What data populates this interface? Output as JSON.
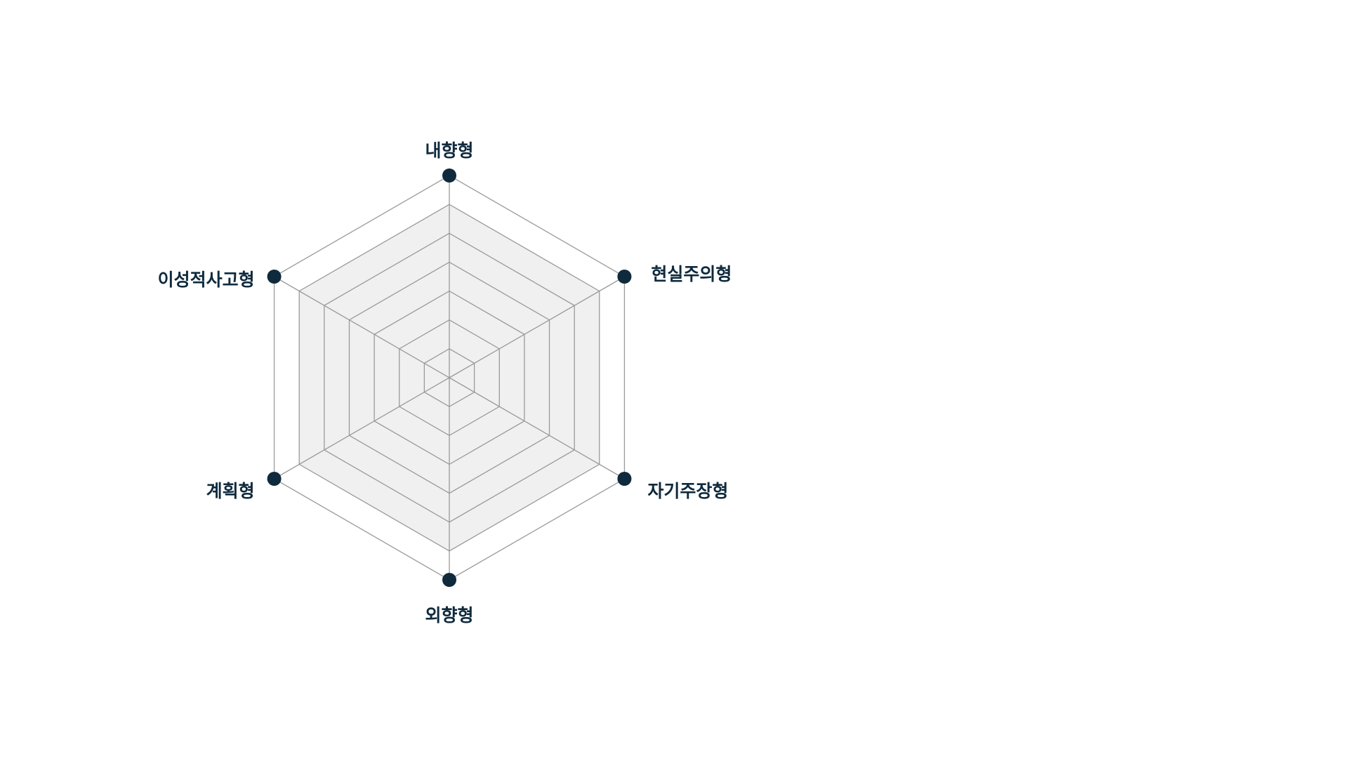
{
  "chart_data": {
    "type": "radar",
    "axes": [
      "내향형",
      "현실주의형",
      "자기주장형",
      "외향형",
      "계획형",
      "이성적사고형"
    ],
    "levels": 7,
    "max": 7,
    "filled_area_level": 6,
    "grid": true,
    "colors": {
      "grid": "#9a9a9a",
      "fill": "#f0f0f0",
      "marker": "#0f2a3d",
      "label": "#0f2a3d"
    }
  }
}
